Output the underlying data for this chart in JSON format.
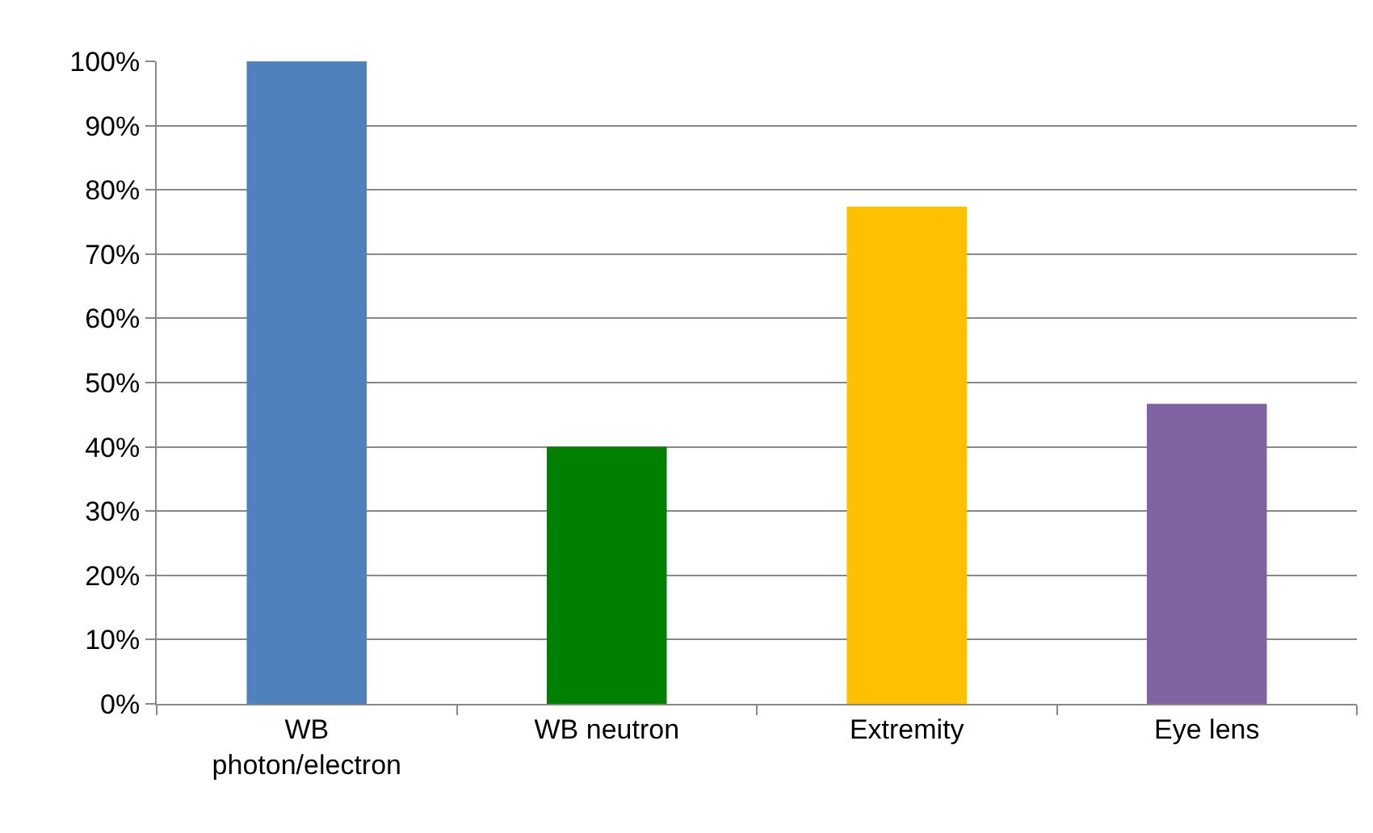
{
  "chart_data": {
    "type": "bar",
    "categories": [
      "WB photon/electron",
      "WB neutron",
      "Extremity",
      "Eye lens"
    ],
    "values": [
      100,
      40,
      77.4,
      46.7
    ],
    "colors": [
      "#4f81bd",
      "#008000",
      "#ffc000",
      "#8064a2"
    ],
    "ylim": [
      0,
      100
    ],
    "yticks": [
      {
        "value": 0,
        "label": "0%"
      },
      {
        "value": 10,
        "label": "10%"
      },
      {
        "value": 20,
        "label": "20%"
      },
      {
        "value": 30,
        "label": "30%"
      },
      {
        "value": 40,
        "label": "40%"
      },
      {
        "value": 50,
        "label": "50%"
      },
      {
        "value": 60,
        "label": "60%"
      },
      {
        "value": 70,
        "label": "70%"
      },
      {
        "value": 80,
        "label": "80%"
      },
      {
        "value": 90,
        "label": "90%"
      },
      {
        "value": 100,
        "label": "100%"
      }
    ],
    "grid": "y"
  }
}
